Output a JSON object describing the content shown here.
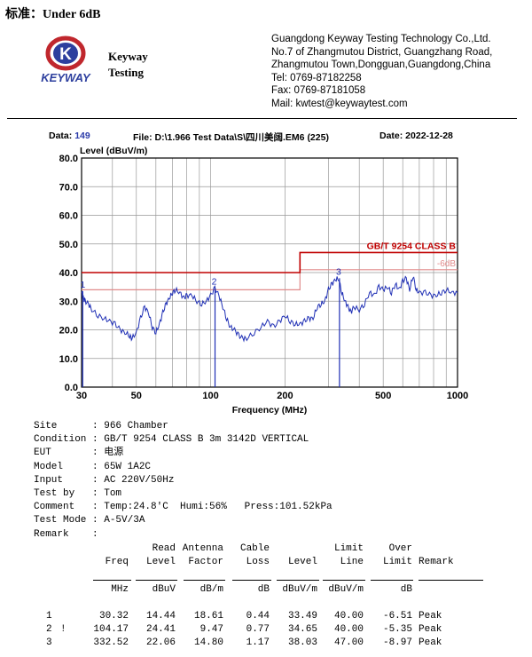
{
  "standard": "标准：Under 6dB",
  "logo": {
    "letter": "K",
    "word": "KEYWAY"
  },
  "brand": {
    "line1": "Keyway",
    "line2": "Testing"
  },
  "company_lines": [
    "Guangdong Keyway Testing Technology Co.,Ltd.",
    "No.7 of Zhangmutou District, Guangzhang Road,",
    "Zhangmutou Town,Dongguan,Guangdong,China",
    "Tel: 0769-87182258",
    "Fax: 0769-87181058",
    "Mail: kwtest@keywaytest.com"
  ],
  "data_label": "Data:",
  "data_value": "149",
  "file_label": "File: D:\\1.966 Test Data\\S\\四川美阔.EM6  (225)",
  "date_label": "Date: 2022-12-28",
  "colors": {
    "trace": "#1f2fb5",
    "limit": "#c00000",
    "margin": "#e08a8a",
    "grid": "#999999"
  },
  "chart_data": {
    "type": "line",
    "ylabel": "Level (dBuV/m)",
    "xlabel": "Frequency (MHz)",
    "x_scale": "log",
    "xlim": [
      30,
      1000
    ],
    "ylim": [
      0,
      80
    ],
    "x_ticks": [
      30,
      50,
      100,
      200,
      500,
      1000
    ],
    "y_ticks": [
      0,
      10,
      20,
      30,
      40,
      50,
      60,
      70,
      80
    ],
    "grid": true,
    "limit": {
      "name": "GB/T 9254 CLASS B",
      "points": [
        [
          30,
          40
        ],
        [
          230,
          40
        ],
        [
          230,
          47
        ],
        [
          1000,
          47
        ]
      ]
    },
    "margin": {
      "name": "-6dB",
      "points": [
        [
          30,
          34
        ],
        [
          230,
          34
        ],
        [
          230,
          41
        ],
        [
          1000,
          41
        ]
      ]
    },
    "trace": {
      "x": [
        30,
        30.5,
        31,
        32,
        33,
        35,
        37,
        39,
        41,
        43,
        45,
        47,
        48,
        50,
        52,
        54,
        56,
        58,
        60,
        62,
        64,
        66,
        68,
        70,
        72,
        75,
        78,
        80,
        84,
        88,
        92,
        96,
        100,
        104,
        108,
        112,
        116,
        120,
        125,
        130,
        135,
        140,
        150,
        160,
        170,
        180,
        190,
        200,
        210,
        220,
        230,
        240,
        250,
        260,
        270,
        280,
        290,
        300,
        310,
        320,
        330,
        340,
        350,
        360,
        370,
        380,
        400,
        420,
        440,
        460,
        480,
        500,
        520,
        540,
        560,
        580,
        600,
        620,
        640,
        660,
        680,
        700,
        740,
        780,
        820,
        860,
        900,
        950,
        1000
      ],
      "y": [
        33,
        31,
        30,
        29,
        27,
        25,
        24,
        23,
        22,
        20,
        19,
        18,
        17,
        19,
        24,
        28,
        26,
        21,
        19,
        22,
        26,
        29,
        31,
        33,
        34,
        33,
        31,
        32,
        32,
        30,
        29,
        30,
        32,
        34.5,
        32,
        28,
        24,
        21,
        20,
        18,
        17,
        17,
        19,
        21,
        23,
        21,
        23,
        25,
        23,
        22,
        22,
        23,
        24,
        24,
        28,
        29,
        30,
        34,
        36,
        37.5,
        38,
        33,
        30,
        28,
        26,
        28,
        27,
        29,
        33,
        32,
        35,
        34,
        35,
        33,
        36,
        34,
        37,
        38,
        34,
        39,
        34,
        33,
        33,
        32,
        32,
        33,
        34,
        33,
        33
      ]
    },
    "markers": [
      {
        "label": "1",
        "x": 30.32,
        "y": 33.49
      },
      {
        "label": "2",
        "x": 104.17,
        "y": 34.65
      },
      {
        "label": "3",
        "x": 332.52,
        "y": 38.03
      }
    ]
  },
  "info_rows": [
    {
      "k": "Site",
      "v": "966 Chamber"
    },
    {
      "k": "Condition",
      "v": "GB/T 9254 CLASS B 3m 3142D VERTICAL"
    },
    {
      "k": "EUT",
      "v": "电源"
    },
    {
      "k": "Model",
      "v": "65W 1A2C"
    },
    {
      "k": "Input",
      "v": "AC 220V/50Hz"
    },
    {
      "k": "Test by",
      "v": "Tom"
    },
    {
      "k": "Comment",
      "v": "Temp:24.8'C  Humi:56%   Press:101.52kPa"
    },
    {
      "k": "Test Mode",
      "v": "A-5V/3A"
    },
    {
      "k": "Remark",
      "v": ""
    }
  ],
  "table": {
    "header1": [
      "",
      "Read",
      "Antenna",
      "Cable",
      "",
      "Limit",
      "Over",
      ""
    ],
    "header2": [
      "Freq",
      "Level",
      "Factor",
      "Loss",
      "Level",
      "Line",
      "Limit",
      "Remark"
    ],
    "units": [
      "MHz",
      "dBuV",
      "dB/m",
      "dB",
      "dBuV/m",
      "dBuV/m",
      "dB",
      ""
    ],
    "rows": [
      {
        "no": "1",
        "flag": "",
        "cells": [
          "30.32",
          "14.44",
          "18.61",
          "0.44",
          "33.49",
          "40.00",
          "-6.51",
          "Peak"
        ]
      },
      {
        "no": "2",
        "flag": "!",
        "cells": [
          "104.17",
          "24.41",
          "9.47",
          "0.77",
          "34.65",
          "40.00",
          "-5.35",
          "Peak"
        ]
      },
      {
        "no": "3",
        "flag": "",
        "cells": [
          "332.52",
          "22.06",
          "14.80",
          "1.17",
          "38.03",
          "47.00",
          "-8.97",
          "Peak"
        ]
      }
    ]
  }
}
